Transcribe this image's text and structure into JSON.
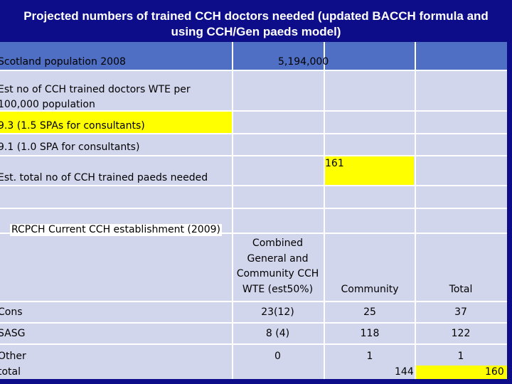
{
  "title": "Projected numbers of trained CCH doctors needed (updated BACCH formula and using CCH/Gen paeds model)",
  "population": {
    "label": "Scotland population 2008",
    "value": "5,194,000"
  },
  "wte_label": "Est no of CCH trained doctors WTE per 100,000 population",
  "spa_15": "9.3 (1.5 SPAs for consultants)",
  "spa_10": "9.1 (1.0 SPA for consultants)",
  "total_needed": {
    "label": "Est. total no of CCH trained paeds needed",
    "value": "161"
  },
  "establishment_label": "RCPCH Current CCH establishment (2009)",
  "columns": {
    "combined": "Combined General and Community CCH WTE (est50%)",
    "community": "Community",
    "total": "Total"
  },
  "rows": [
    {
      "label": "Cons",
      "combined": "23(12)",
      "community": "25",
      "total": "37"
    },
    {
      "label": "SASG",
      "combined": "8 (4)",
      "community": "118",
      "total": "122"
    },
    {
      "label": "Other",
      "combined": "0",
      "community": "1",
      "total": "1"
    }
  ],
  "total_row": {
    "label": "total",
    "community": "144",
    "total": "160"
  }
}
